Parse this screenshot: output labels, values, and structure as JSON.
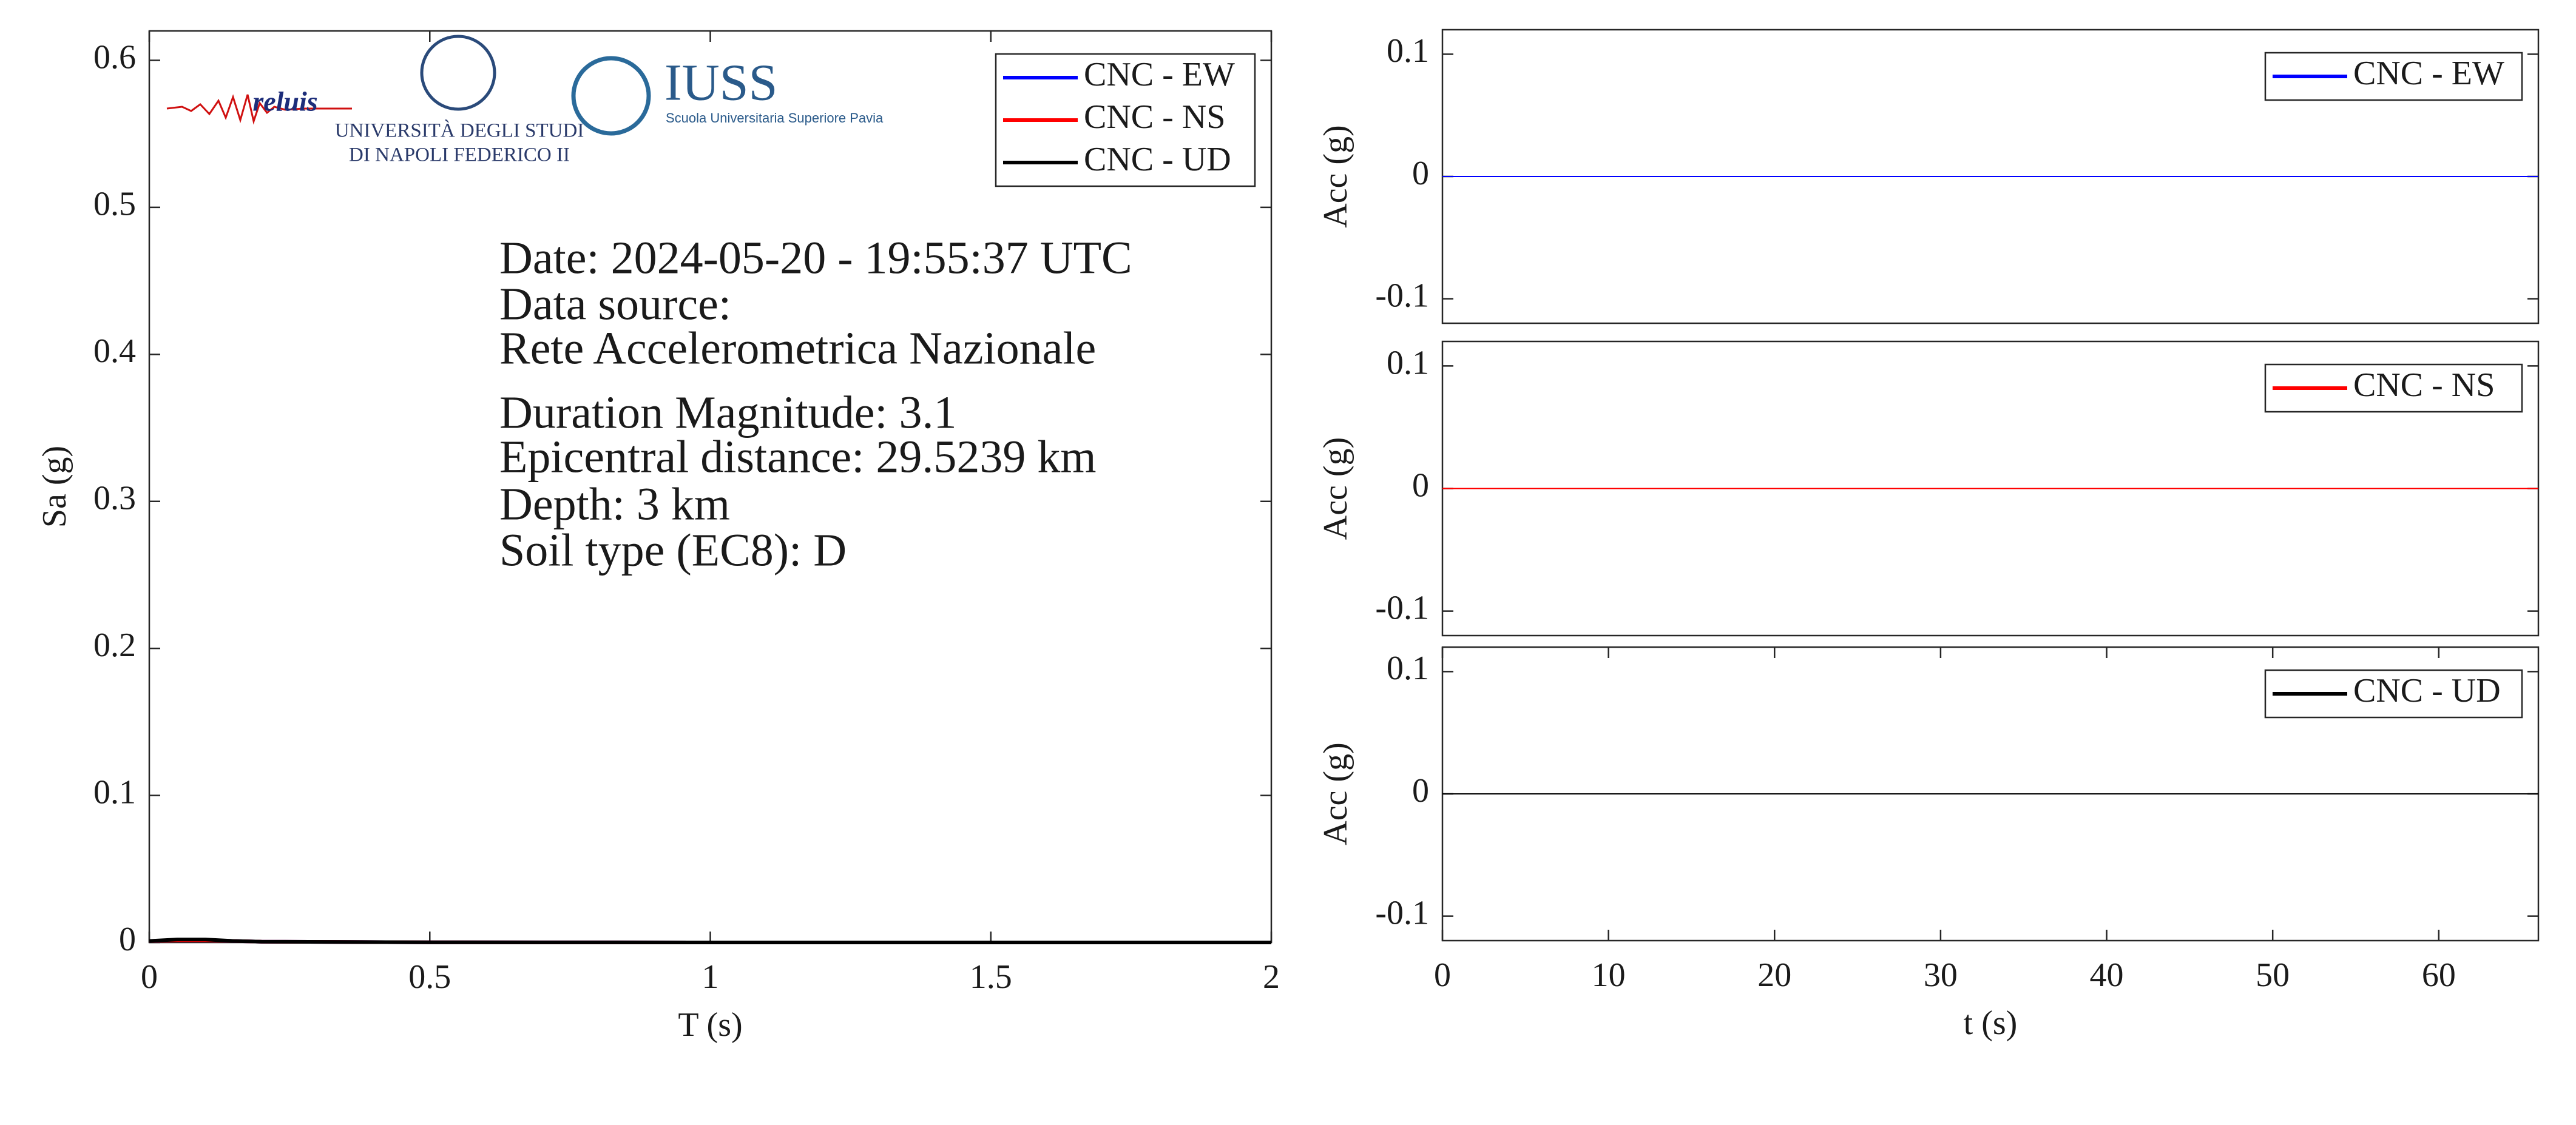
{
  "chart_data": [
    {
      "type": "line",
      "x": [
        0,
        0.05,
        0.1,
        0.15,
        0.2,
        0.5,
        1,
        1.5,
        2
      ],
      "series": [
        {
          "name": "CNC - EW",
          "color": "#0000ff",
          "values": [
            0.001,
            0.0015,
            0.0015,
            0.001,
            0.0005,
            0.0001,
            0,
            0,
            0
          ]
        },
        {
          "name": "CNC - NS",
          "color": "#ff0000",
          "values": [
            0.001,
            0.0015,
            0.0015,
            0.001,
            0.0005,
            0.0001,
            0,
            0,
            0
          ]
        },
        {
          "name": "CNC - UD",
          "color": "#000000",
          "values": [
            0.001,
            0.002,
            0.002,
            0.001,
            0.0005,
            0.0001,
            0,
            0,
            0
          ]
        }
      ],
      "xlim": [
        0,
        2
      ],
      "ylim": [
        0,
        0.62
      ],
      "xticks": [
        0,
        0.5,
        1,
        1.5,
        2
      ],
      "yticks": [
        0,
        0.1,
        0.2,
        0.3,
        0.4,
        0.5,
        0.6
      ],
      "xlabel": "T (s)",
      "ylabel": "Sa (g)",
      "legend": "northeast",
      "annotations": [
        "Date: 2024-05-20 - 19:55:37 UTC",
        "Data source:",
        "Rete Accelerometrica Nazionale",
        "Duration Magnitude: 3.1",
        "Epicentral distance: 29.5239 km",
        "Depth: 3 km",
        "Soil type (EC8): D"
      ],
      "logos": [
        "reluis",
        "UNIVERSITÀ DEGLI STUDI",
        "DI NAPOLI FEDERICO II",
        "IUSS",
        "Scuola Universitaria Superiore Pavia"
      ]
    },
    {
      "type": "line",
      "x": [
        0,
        66
      ],
      "series": [
        {
          "name": "CNC - EW",
          "color": "#0000ff",
          "values": [
            0,
            0
          ]
        }
      ],
      "xlim": [
        0,
        66
      ],
      "ylim": [
        -0.12,
        0.12
      ],
      "yticks": [
        -0.1,
        0,
        0.1
      ],
      "ylabel": "Acc (g)",
      "legend": "northeast"
    },
    {
      "type": "line",
      "x": [
        0,
        66
      ],
      "series": [
        {
          "name": "CNC - NS",
          "color": "#ff0000",
          "values": [
            0,
            0
          ]
        }
      ],
      "xlim": [
        0,
        66
      ],
      "ylim": [
        -0.12,
        0.12
      ],
      "yticks": [
        -0.1,
        0,
        0.1
      ],
      "ylabel": "Acc (g)",
      "legend": "northeast"
    },
    {
      "type": "line",
      "x": [
        0,
        66
      ],
      "series": [
        {
          "name": "CNC - UD",
          "color": "#000000",
          "values": [
            0,
            0
          ]
        }
      ],
      "xlim": [
        0,
        66
      ],
      "ylim": [
        -0.12,
        0.12
      ],
      "xticks": [
        0,
        10,
        20,
        30,
        40,
        50,
        60
      ],
      "yticks": [
        -0.1,
        0,
        0.1
      ],
      "xlabel": "t (s)",
      "ylabel": "Acc (g)",
      "legend": "northeast"
    }
  ]
}
